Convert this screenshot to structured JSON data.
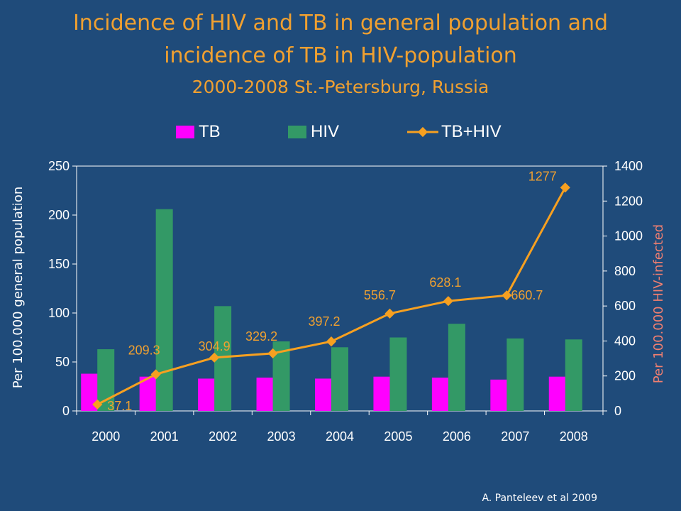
{
  "header": {
    "title_line1": "Incidence  of  HIV and TB in general population and",
    "title_line2": "incidence of TB in HIV-population",
    "subtitle": "2000-2008 St.-Petersburg, Russia"
  },
  "credit": "A. Panteleev et al 2009",
  "colors": {
    "background": "#1f4b7a",
    "tb": "#ff00ff",
    "hiv": "#339966",
    "tbhiv": "#f7a020",
    "title": "#f0a030"
  },
  "chart_data": {
    "type": "bar",
    "categories": [
      "2000",
      "2001",
      "2002",
      "2003",
      "2004",
      "2005",
      "2006",
      "2007",
      "2008"
    ],
    "series": [
      {
        "name": "TB",
        "type": "bar",
        "axis": "left",
        "values": [
          38,
          35,
          33,
          34,
          33,
          35,
          34,
          32,
          35
        ]
      },
      {
        "name": "HIV",
        "type": "bar",
        "axis": "left",
        "values": [
          63,
          206,
          107,
          71,
          65,
          75,
          89,
          74,
          73
        ]
      },
      {
        "name": "TB+HIV",
        "type": "line",
        "axis": "right",
        "values": [
          37.1,
          209.3,
          304.9,
          329.2,
          397.2,
          556.7,
          628.1,
          660.7,
          1277
        ],
        "labels": [
          "37.1",
          "209.3",
          "304.9",
          "329.2",
          "397.2",
          "556.7",
          "628.1",
          "660.7",
          "1277"
        ]
      }
    ],
    "ylabel": "Per 100.000 general population",
    "y2label": "Per 100.000 HIV-infected",
    "ylim": [
      0,
      250
    ],
    "yticks": [
      "0",
      "50",
      "100",
      "150",
      "200",
      "250"
    ],
    "y2lim": [
      0,
      1400
    ],
    "y2ticks": [
      "0",
      "200",
      "400",
      "600",
      "800",
      "1000",
      "1200",
      "1400"
    ],
    "legend": "top"
  }
}
